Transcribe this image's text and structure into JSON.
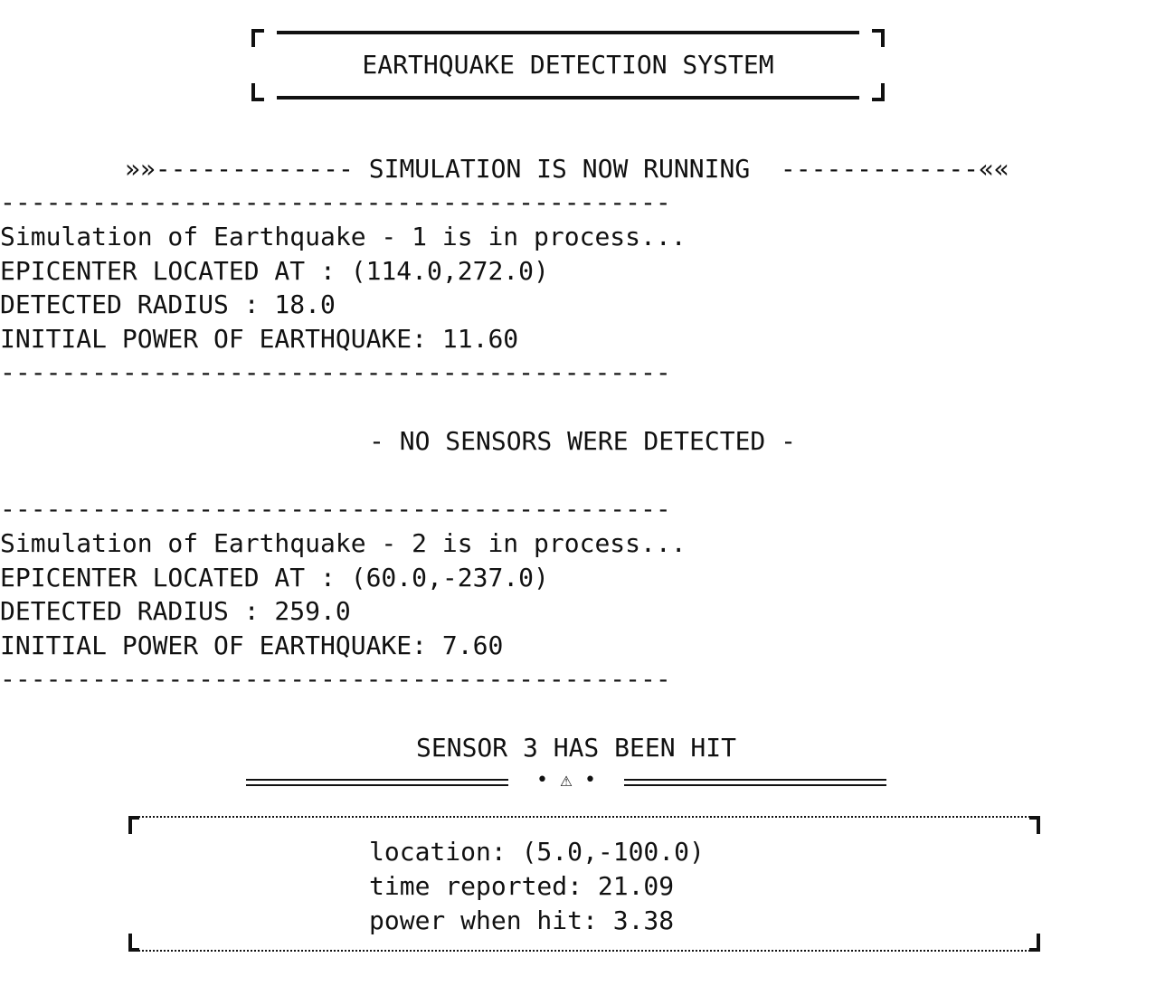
{
  "header": {
    "title": "EARTHQUAKE DETECTION SYSTEM"
  },
  "banner": {
    "left_marker": "»»-------------",
    "text": "SIMULATION IS NOW RUNNING",
    "right_marker": "-------------««"
  },
  "separator": "--------------------------------------------",
  "earthquakes": [
    {
      "status": "Simulation of Earthquake - 1 is in process...",
      "epicenter": "EPICENTER LOCATED AT : (114.0,272.0)",
      "radius": "DETECTED RADIUS : 18.0",
      "power": "INITIAL POWER OF EARTHQUAKE: 11.60"
    },
    {
      "status": "Simulation of Earthquake - 2 is in process...",
      "epicenter": "EPICENTER LOCATED AT : (60.0,-237.0)",
      "radius": "DETECTED RADIUS : 259.0",
      "power": "INITIAL POWER OF EARTHQUAKE: 7.60"
    }
  ],
  "no_sensors_message": "- NO SENSORS WERE DETECTED -",
  "sensor_hit": {
    "heading": "SENSOR 3 HAS BEEN HIT",
    "warning_symbol": "• ⚠ •",
    "location": "location: (5.0,-100.0)",
    "time_reported": "time reported: 21.09",
    "power_when_hit": "power when hit: 3.38"
  }
}
